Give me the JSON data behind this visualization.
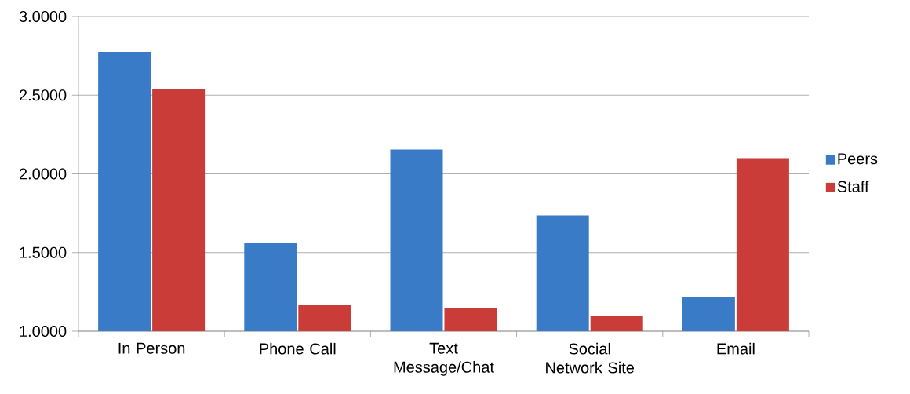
{
  "chart_data": {
    "type": "bar",
    "categories": [
      "In Person",
      "Phone Call",
      "Text Message/Chat",
      "Social Network Site",
      "Email"
    ],
    "series": [
      {
        "name": "Peers",
        "color": "#3a7bc8",
        "values": [
          2.775,
          1.56,
          2.155,
          1.735,
          1.22
        ]
      },
      {
        "name": "Staff",
        "color": "#c93c38",
        "values": [
          2.54,
          1.165,
          1.15,
          1.095,
          2.1
        ]
      }
    ],
    "ylim": [
      1,
      3
    ],
    "yticks": [
      {
        "value": 1,
        "label": "1.0000"
      },
      {
        "value": 1.5,
        "label": "1.5000"
      },
      {
        "value": 2,
        "label": "2.0000"
      },
      {
        "value": 2.5,
        "label": "2.5000"
      },
      {
        "value": 3,
        "label": "3.0000"
      }
    ],
    "grid": "y",
    "legend": "right"
  }
}
